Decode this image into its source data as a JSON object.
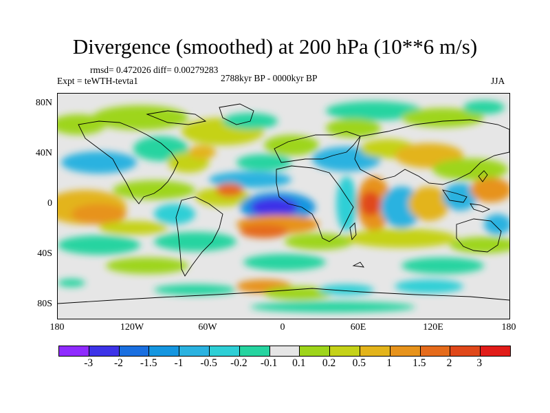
{
  "title": "Divergence (smoothed) at 200 hPa (10**6 m/s)",
  "stats": "rmsd= 0.472026 diff= 0.00279283",
  "experiment": "Expt = teWTH-tevta1",
  "period": "2788kyr BP - 0000kyr BP",
  "season": "JJA",
  "lat_labels": [
    "80N",
    "40N",
    "0",
    "40S",
    "80S"
  ],
  "lon_labels": [
    "180",
    "120W",
    "60W",
    "0",
    "60E",
    "120E",
    "180"
  ],
  "colorbar": {
    "colors": [
      "#8f2bff",
      "#3d33e8",
      "#1a6fe0",
      "#1596e0",
      "#2ab2e0",
      "#2ecfd6",
      "#26d4a0",
      "#e6e6e6",
      "#9ed51a",
      "#c5d218",
      "#e3b41b",
      "#e7931c",
      "#e56b1b",
      "#e0481a",
      "#e11c19"
    ],
    "labels": [
      "-3",
      "-2",
      "-1.5",
      "-1",
      "-0.5",
      "-0.2",
      "-0.1",
      "0.1",
      "0.2",
      "0.5",
      "1",
      "1.5",
      "2",
      "3"
    ]
  }
}
